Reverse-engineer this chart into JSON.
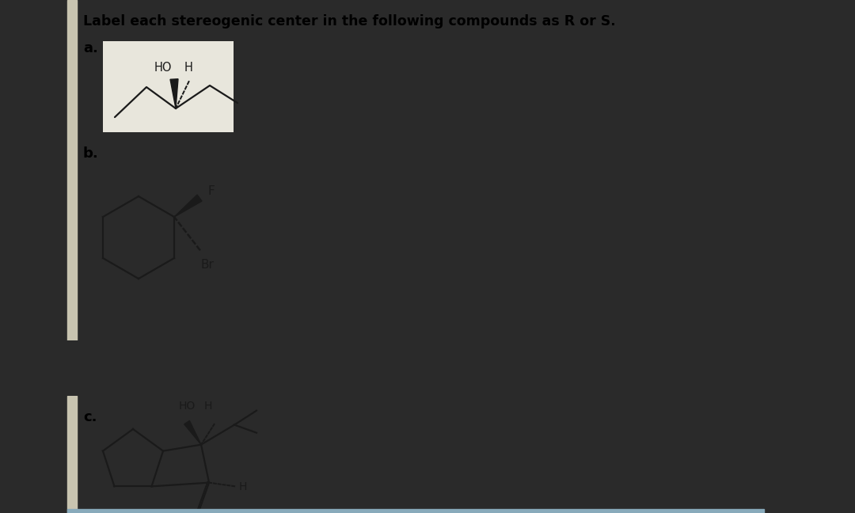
{
  "title": "Label each stereogenic center in the following compounds as R or S.",
  "title_fontsize": 12.5,
  "title_fontweight": "bold",
  "label_a": "a.",
  "label_b": "b.",
  "label_c": "c.",
  "label_fontsize": 13,
  "label_fontweight": "bold",
  "black": "#000000",
  "white": "#ffffff",
  "line_color": "#1a1a1a",
  "line_width": 1.6,
  "outer_bg": "#2a2a2a",
  "panel_top_bg": "#ffffff",
  "panel_bot_bg": "#ffffff",
  "left_bar_color": "#c8c4b0",
  "panel_a_bg": "#e8e6dc",
  "bottom_line_color": "#88aabb"
}
